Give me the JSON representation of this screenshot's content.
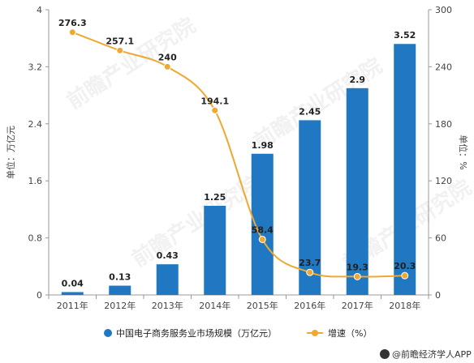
{
  "chart_data": {
    "type": "bar",
    "categories": [
      "2011年",
      "2012年",
      "2013年",
      "2014年",
      "2015年",
      "2016年",
      "2017年",
      "2018年"
    ],
    "series": [
      {
        "name": "中国电子商务服务业市场规模（万亿元）",
        "kind": "bar",
        "axis": "left",
        "color": "#1f78c1",
        "values": [
          0.04,
          0.13,
          0.43,
          1.25,
          1.98,
          2.45,
          2.9,
          3.52
        ],
        "labels": [
          "0.04",
          "0.13",
          "0.43",
          "1.25",
          "1.98",
          "2.45",
          "2.9",
          "3.52"
        ]
      },
      {
        "name": "增速（%）",
        "kind": "line",
        "axis": "right",
        "color": "#f0a830",
        "values": [
          276.3,
          257.1,
          240,
          194.1,
          58.4,
          23.7,
          19.3,
          20.3
        ],
        "labels": [
          "276.3",
          "257.1",
          "240",
          "194.1",
          "58.4",
          "23.7",
          "19.3",
          "20.3"
        ]
      }
    ],
    "ylabel": "单位：万亿元",
    "y2label": "单位：%",
    "ylim": [
      0,
      4
    ],
    "yticks": [
      "0",
      "0.8",
      "1.6",
      "2.4",
      "3.2",
      "4"
    ],
    "y2lim": [
      0,
      300
    ],
    "y2ticks": [
      "0",
      "60",
      "120",
      "180",
      "240",
      "300"
    ],
    "grid": false,
    "legend_position": "bottom"
  },
  "watermark": {
    "text": "前瞻产业研究院"
  },
  "credit": {
    "text": "@前瞻经济学人APP",
    "icon": "qianzhan-logo-icon"
  }
}
